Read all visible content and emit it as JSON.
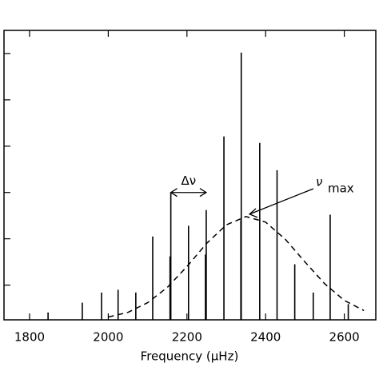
{
  "chart_data": {
    "type": "bar",
    "x_label": "Frequency (μHz)",
    "x": [
      1847,
      1934,
      1983,
      2025,
      2070,
      2113,
      2157,
      2159,
      2204,
      2247,
      2249,
      2294,
      2337,
      2338,
      2385,
      2429,
      2474,
      2521,
      2564,
      2610
    ],
    "values": [
      0.41,
      0.62,
      0.84,
      0.9,
      0.84,
      2.05,
      1.62,
      3.0,
      2.28,
      1.66,
      2.62,
      4.21,
      2.4,
      6.02,
      4.07,
      3.48,
      1.45,
      0.84,
      2.52,
      0.59
    ],
    "color": "#000000",
    "envelope": {
      "x": [
        2000,
        2050,
        2100,
        2150,
        2200,
        2250,
        2300,
        2350,
        2400,
        2450,
        2500,
        2550,
        2600,
        2650
      ],
      "values": [
        0.31,
        0.41,
        0.62,
        0.95,
        1.4,
        1.9,
        2.3,
        2.48,
        2.36,
        1.99,
        1.5,
        1.03,
        0.67,
        0.45
      ]
    },
    "annotations": [
      {
        "text": "Δν",
        "x": [
          2159,
          2249
        ],
        "y": 3.0
      },
      {
        "text": "ν",
        "subscript": "max",
        "x": 2355,
        "y": 2.48
      }
    ],
    "xlim": [
      1735,
      2680
    ],
    "xticks": [
      1800,
      2000,
      2200,
      2400,
      2600
    ],
    "ylim": [
      0.25,
      6.5
    ],
    "yticks": [
      1,
      2,
      3,
      4,
      5,
      6
    ]
  }
}
